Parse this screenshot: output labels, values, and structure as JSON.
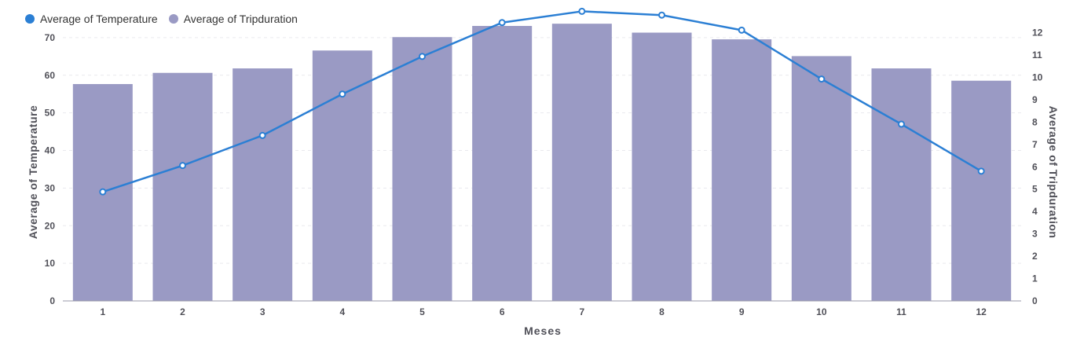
{
  "chart_data": {
    "type": "bar",
    "categories": [
      "1",
      "2",
      "3",
      "4",
      "5",
      "6",
      "7",
      "8",
      "9",
      "10",
      "11",
      "12"
    ],
    "xlabel": "Meses",
    "ylabel_left": "Average of Temperature",
    "ylabel_right": "Average of Tripduration",
    "legend_position": "top-left",
    "grid": true,
    "y_left": {
      "range": [
        0,
        75
      ],
      "ticks": [
        0,
        10,
        20,
        30,
        40,
        50,
        60,
        70
      ]
    },
    "y_right": {
      "range": [
        0,
        12.3
      ],
      "ticks": [
        0,
        1,
        2,
        3,
        4,
        5,
        6,
        7,
        8,
        9,
        10,
        11,
        12
      ]
    },
    "series": [
      {
        "name": "Average of Temperature",
        "type": "line",
        "axis": "left",
        "color": "#2b7fd4",
        "values": [
          29,
          36,
          44,
          55,
          65,
          74,
          77,
          76,
          72,
          59,
          47,
          34.5
        ]
      },
      {
        "name": "Average of Tripduration",
        "type": "bar",
        "axis": "right",
        "color": "#9a9ac4",
        "values": [
          9.7,
          10.2,
          10.4,
          11.2,
          11.8,
          12.3,
          12.4,
          12.0,
          11.7,
          10.95,
          10.4,
          9.85
        ]
      }
    ]
  }
}
